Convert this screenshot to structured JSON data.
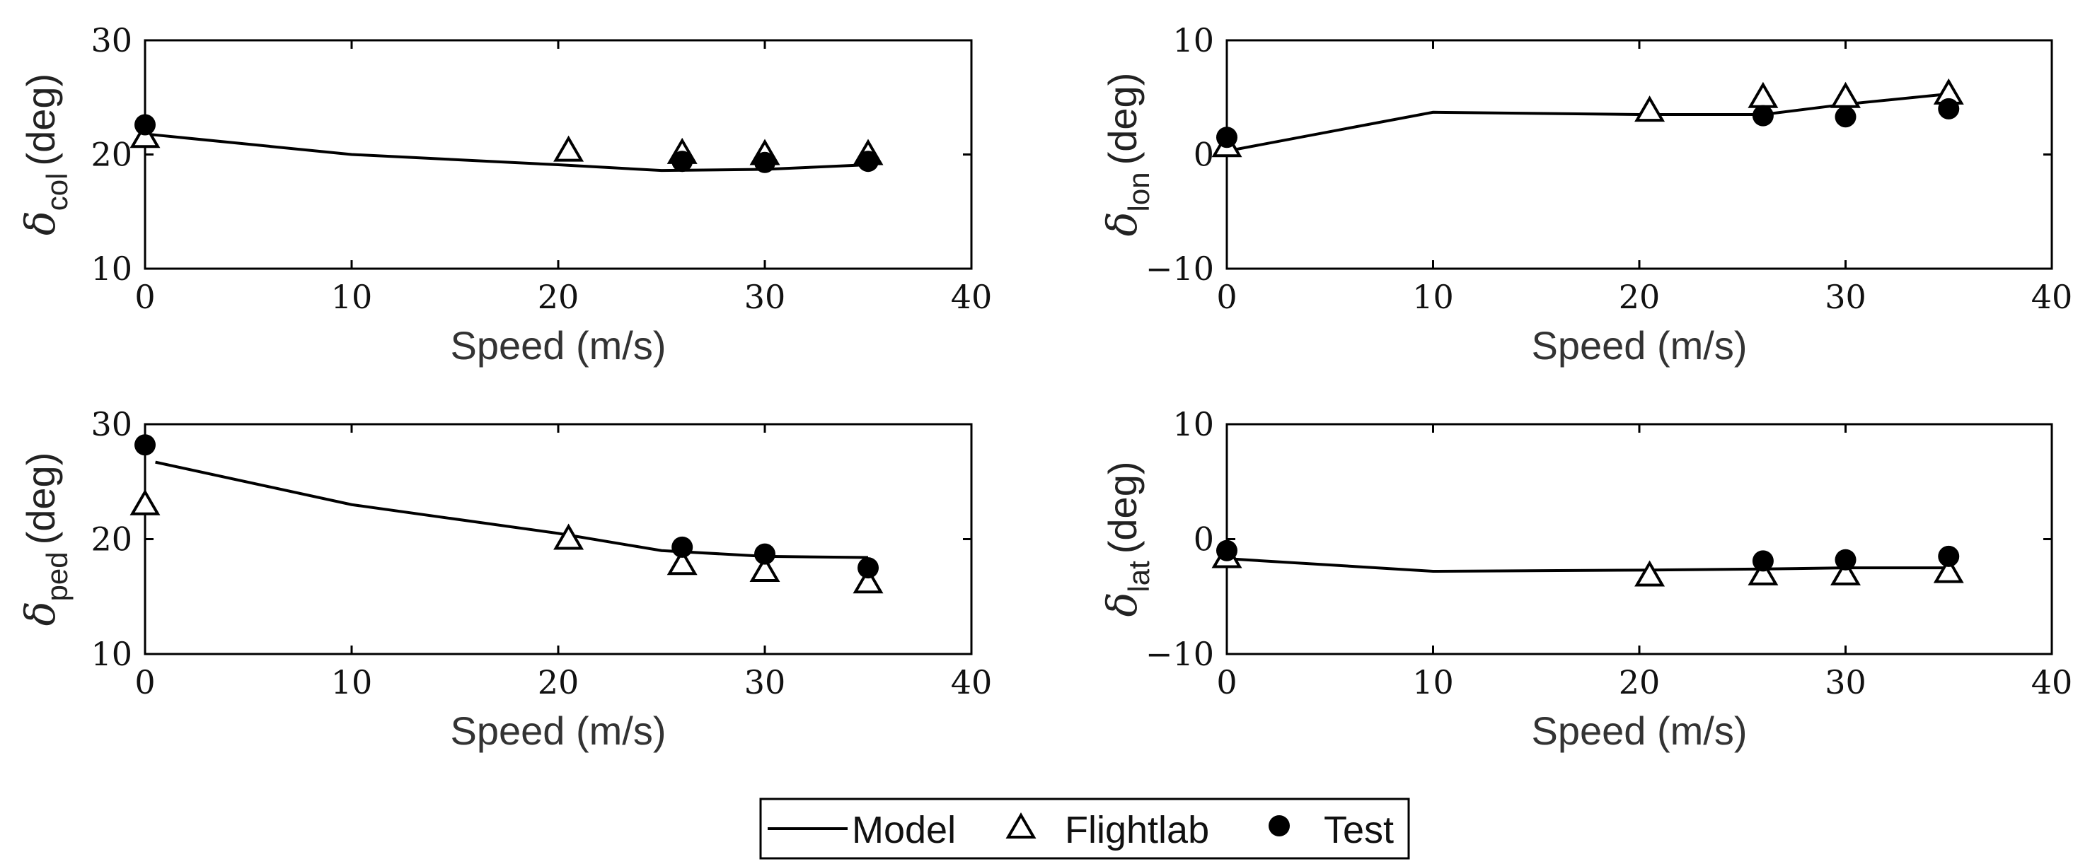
{
  "chart_data": [
    {
      "type": "line",
      "panel": "top-left",
      "ylabel_symbol": "δ",
      "ylabel_sub": "col",
      "ylabel_unit": "(deg)",
      "xlabel": "Speed (m/s)",
      "xlim": [
        0,
        40
      ],
      "ylim": [
        10,
        30
      ],
      "xticks": [
        "0",
        "10",
        "20",
        "30",
        "40"
      ],
      "yticks": [
        "10",
        "20",
        "30"
      ],
      "series": [
        {
          "name": "Model",
          "style": "line",
          "x": [
            0,
            10,
            20,
            25,
            30,
            35
          ],
          "y": [
            21.8,
            20.0,
            19.1,
            18.6,
            18.7,
            19.1
          ]
        },
        {
          "name": "Flightlab",
          "style": "triangle",
          "x": [
            0,
            20.5,
            26,
            30,
            35
          ],
          "y": [
            21.5,
            20.3,
            20.1,
            20.0,
            20.0
          ]
        },
        {
          "name": "Test",
          "style": "dot",
          "x": [
            0,
            26,
            30,
            35
          ],
          "y": [
            22.6,
            19.4,
            19.3,
            19.4
          ]
        }
      ]
    },
    {
      "type": "line",
      "panel": "top-right",
      "ylabel_symbol": "δ",
      "ylabel_sub": "lon",
      "ylabel_unit": "(deg)",
      "xlabel": "Speed (m/s)",
      "xlim": [
        0,
        40
      ],
      "ylim": [
        -10,
        10
      ],
      "xticks": [
        "0",
        "10",
        "20",
        "30",
        "40"
      ],
      "yticks": [
        "−10",
        "0",
        "10"
      ],
      "series": [
        {
          "name": "Model",
          "style": "line",
          "x": [
            0,
            10,
            20,
            26,
            30,
            35
          ],
          "y": [
            0.3,
            3.7,
            3.5,
            3.5,
            4.4,
            5.3
          ]
        },
        {
          "name": "Flightlab",
          "style": "triangle",
          "x": [
            0,
            20.5,
            26,
            30,
            35
          ],
          "y": [
            0.7,
            3.8,
            5.0,
            5.0,
            5.3
          ]
        },
        {
          "name": "Test",
          "style": "dot",
          "x": [
            0,
            26,
            30,
            35
          ],
          "y": [
            1.5,
            3.4,
            3.3,
            4.0
          ]
        }
      ]
    },
    {
      "type": "line",
      "panel": "bottom-left",
      "ylabel_symbol": "δ",
      "ylabel_sub": "ped",
      "ylabel_unit": "(deg)",
      "xlabel": "Speed (m/s)",
      "xlim": [
        0,
        40
      ],
      "ylim": [
        10,
        30
      ],
      "xticks": [
        "0",
        "10",
        "20",
        "30",
        "40"
      ],
      "yticks": [
        "10",
        "20",
        "30"
      ],
      "series": [
        {
          "name": "Model",
          "style": "line",
          "x": [
            0.5,
            10,
            20,
            25,
            30,
            35
          ],
          "y": [
            26.7,
            23.0,
            20.5,
            19.0,
            18.5,
            18.4
          ]
        },
        {
          "name": "Flightlab",
          "style": "triangle",
          "x": [
            0,
            20.5,
            26,
            30,
            35
          ],
          "y": [
            23.0,
            20.0,
            17.8,
            17.2,
            16.2
          ]
        },
        {
          "name": "Test",
          "style": "dot",
          "x": [
            0,
            26,
            30,
            35
          ],
          "y": [
            28.2,
            19.3,
            18.7,
            17.5
          ]
        }
      ]
    },
    {
      "type": "line",
      "panel": "bottom-right",
      "ylabel_symbol": "δ",
      "ylabel_sub": "lat",
      "ylabel_unit": "(deg)",
      "xlabel": "Speed (m/s)",
      "xlim": [
        0,
        40
      ],
      "ylim": [
        -10,
        10
      ],
      "xticks": [
        "0",
        "10",
        "20",
        "30",
        "40"
      ],
      "yticks": [
        "−10",
        "0",
        "10"
      ],
      "series": [
        {
          "name": "Model",
          "style": "line",
          "x": [
            0,
            10,
            20,
            26,
            30,
            35
          ],
          "y": [
            -1.7,
            -2.8,
            -2.7,
            -2.6,
            -2.5,
            -2.5
          ]
        },
        {
          "name": "Flightlab",
          "style": "triangle",
          "x": [
            0,
            20.5,
            26,
            30,
            35
          ],
          "y": [
            -1.6,
            -3.2,
            -3.1,
            -3.1,
            -2.9
          ]
        },
        {
          "name": "Test",
          "style": "dot",
          "x": [
            0,
            26,
            30,
            35
          ],
          "y": [
            -1.0,
            -1.9,
            -1.8,
            -1.5
          ]
        }
      ]
    }
  ],
  "legend": {
    "items": [
      {
        "label": "Model",
        "marker": "line"
      },
      {
        "label": "Flightlab",
        "marker": "triangle"
      },
      {
        "label": "Test",
        "marker": "dot"
      }
    ]
  }
}
